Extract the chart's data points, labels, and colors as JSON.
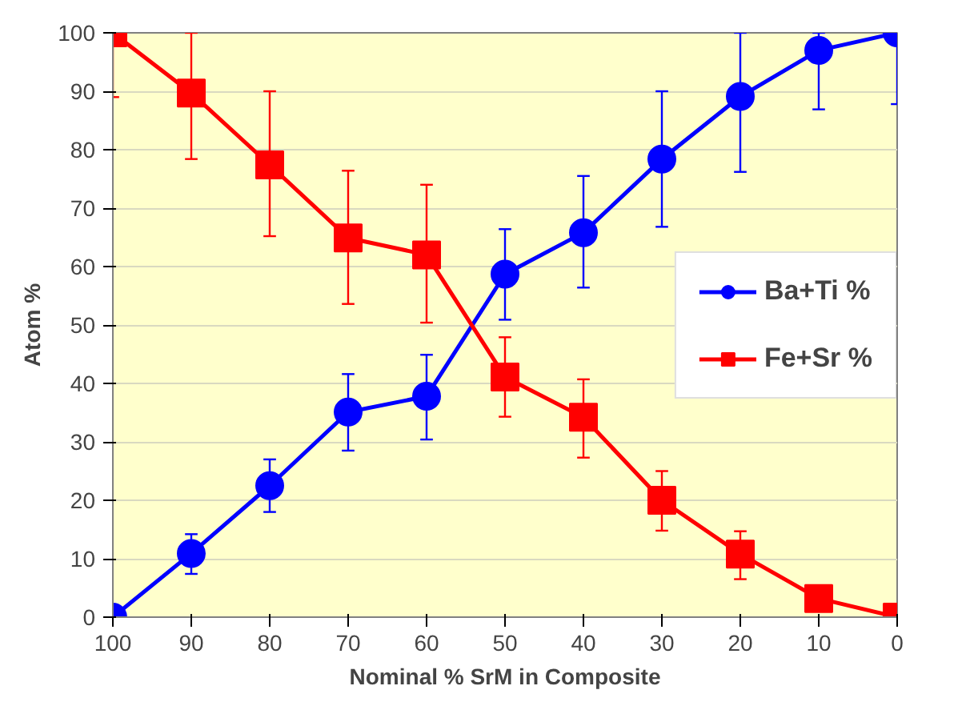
{
  "chart_data": {
    "type": "line",
    "xlabel": "Nominal % SrM in Composite",
    "ylabel": "Atom %",
    "x": [
      100,
      90,
      80,
      70,
      60,
      50,
      40,
      30,
      20,
      10,
      0
    ],
    "xlim": [
      100,
      0
    ],
    "xticks": [
      100,
      90,
      80,
      70,
      60,
      50,
      40,
      30,
      20,
      10,
      0
    ],
    "ylim": [
      0,
      100
    ],
    "yticks": [
      0,
      10,
      20,
      30,
      40,
      50,
      60,
      70,
      80,
      90,
      100
    ],
    "grid": "y",
    "legend": "right",
    "line_style": "solid",
    "series": [
      {
        "name": "Ba+Ti %",
        "color": "#0000ff",
        "marker": "circle",
        "values": [
          0,
          10.9,
          22.5,
          35.1,
          37.8,
          58.7,
          65.8,
          78.4,
          89.1,
          97,
          100
        ],
        "errors": [
          null,
          [
            7.4,
            14.2
          ],
          [
            18,
            27
          ],
          [
            28.5,
            41.6
          ],
          [
            30.4,
            44.9
          ],
          [
            50.9,
            66.4
          ],
          [
            56.4,
            75.5
          ],
          [
            66.8,
            90
          ],
          [
            76.2,
            100
          ],
          [
            86.9,
            100
          ],
          [
            87.8,
            100
          ]
        ]
      },
      {
        "name": "Fe+Sr %",
        "color": "#ff0000",
        "marker": "square",
        "values": [
          100,
          89.7,
          77.4,
          64.9,
          62,
          41.1,
          34.2,
          20,
          10.8,
          3.2,
          0
        ],
        "errors": [
          [
            89,
            100
          ],
          [
            78.4,
            100
          ],
          [
            65.2,
            90
          ],
          [
            53.6,
            76.4
          ],
          [
            50.4,
            74
          ],
          [
            34.3,
            47.9
          ],
          [
            27.3,
            40.7
          ],
          [
            14.8,
            25
          ],
          [
            6.5,
            14.7
          ],
          null,
          null
        ]
      }
    ]
  }
}
